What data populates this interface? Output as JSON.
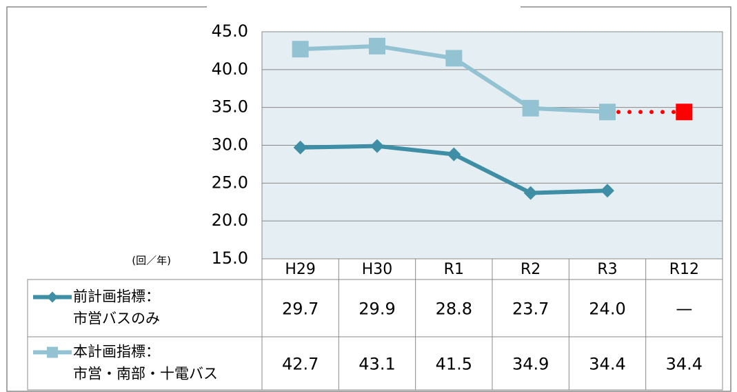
{
  "chart_data": {
    "type": "line",
    "y_unit_label": "(回／年)",
    "categories": [
      "H29",
      "H30",
      "R1",
      "R2",
      "R3",
      "R12"
    ],
    "series": [
      {
        "name": "前計画指標：\n市営バスのみ",
        "color": "#3e8ea6",
        "marker": "diamond",
        "values": [
          29.7,
          29.9,
          28.8,
          23.7,
          24.0,
          null
        ],
        "value_labels": [
          "29.7",
          "29.9",
          "28.8",
          "23.7",
          "24.0",
          "—"
        ]
      },
      {
        "name": "本計画指標：\n市営・南部・十電バス",
        "color": "#93c3d3",
        "marker": "square",
        "dashed_last_segment_color": "#ff0000",
        "values": [
          42.7,
          43.1,
          41.5,
          34.9,
          34.4,
          34.4
        ],
        "value_labels": [
          "42.7",
          "43.1",
          "41.5",
          "34.9",
          "34.4",
          "34.4"
        ]
      }
    ],
    "ylim": [
      15,
      45
    ],
    "yticks": [
      {
        "value": 15,
        "label": "15.0"
      },
      {
        "value": 20,
        "label": "20.0"
      },
      {
        "value": 25,
        "label": "25.0"
      },
      {
        "value": 30,
        "label": "30.0"
      },
      {
        "value": 35,
        "label": "35.0"
      },
      {
        "value": 40,
        "label": "40.0"
      },
      {
        "value": 45,
        "label": "45.0"
      }
    ],
    "grid": true
  }
}
